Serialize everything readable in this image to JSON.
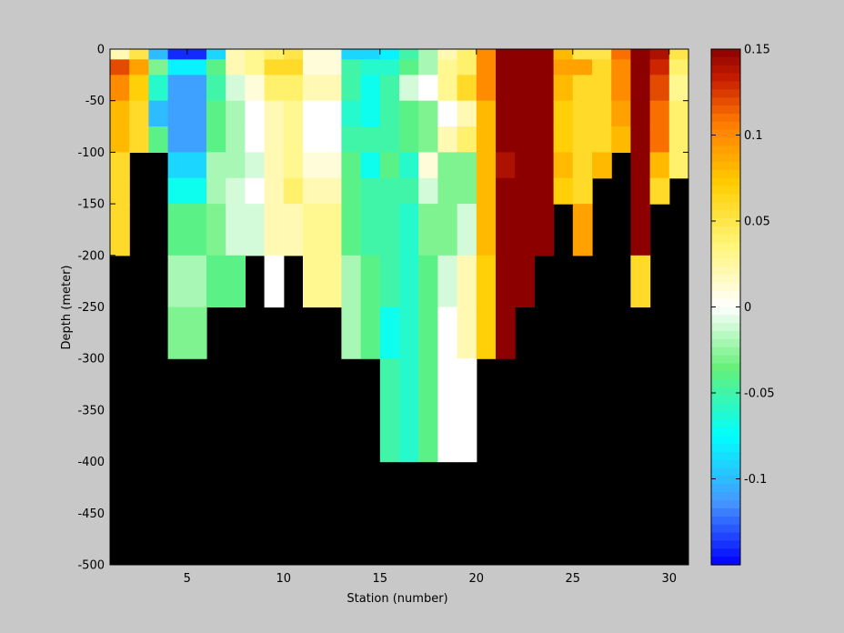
{
  "chart_data": {
    "type": "heatmap",
    "xlabel": "Station (number)",
    "ylabel": "Depth (meter)",
    "xlim": [
      1,
      31
    ],
    "ylim": [
      -500,
      0
    ],
    "x_ticks": [
      5,
      10,
      15,
      20,
      25,
      30
    ],
    "y_ticks": [
      0,
      -50,
      -100,
      -150,
      -200,
      -250,
      -300,
      -350,
      -400,
      -450,
      -500
    ],
    "colorbar": {
      "range": [
        -0.15,
        0.15
      ],
      "ticks": [
        0.15,
        0.1,
        0.05,
        0,
        -0.05,
        -0.1
      ],
      "tick_labels": [
        "0.15",
        "0.1",
        "0.05",
        "0",
        "-0.05",
        "-0.1"
      ],
      "colormap": "jet-white-center"
    },
    "no_data_color": "#000000",
    "background_color": "#c8c8c8",
    "depth_bins": [
      0,
      -10,
      -25,
      -50,
      -75,
      -100,
      -125,
      -150,
      -200,
      -250,
      -300,
      -400
    ],
    "station_columns": [
      [
        0.02,
        0.12,
        0.1,
        0.08,
        0.08,
        0.06,
        0.06,
        0.06,
        null,
        null,
        null
      ],
      [
        0.05,
        0.09,
        0.07,
        0.06,
        0.06,
        null,
        null,
        null,
        null,
        null,
        null
      ],
      [
        -0.1,
        -0.03,
        -0.06,
        -0.1,
        -0.04,
        null,
        null,
        null,
        null,
        null,
        null
      ],
      [
        -0.14,
        -0.08,
        -0.11,
        -0.11,
        -0.11,
        -0.09,
        -0.07,
        -0.04,
        -0.02,
        -0.03,
        null
      ],
      [
        -0.14,
        -0.08,
        -0.11,
        -0.11,
        -0.11,
        -0.09,
        -0.07,
        -0.04,
        -0.02,
        -0.03,
        null
      ],
      [
        -0.09,
        -0.04,
        -0.05,
        -0.04,
        -0.04,
        -0.02,
        -0.02,
        -0.03,
        -0.04,
        null,
        null
      ],
      [
        0.02,
        0.02,
        -0.01,
        -0.02,
        -0.02,
        -0.02,
        -0.01,
        -0.01,
        -0.04,
        null,
        null
      ],
      [
        0.03,
        0.03,
        0.01,
        0.0,
        0.0,
        -0.01,
        0.0,
        -0.01,
        null,
        null,
        null
      ],
      [
        0.04,
        0.06,
        0.04,
        0.02,
        0.02,
        0.02,
        0.02,
        0.02,
        0.0,
        null,
        null
      ],
      [
        0.05,
        0.06,
        0.04,
        0.03,
        0.03,
        0.03,
        0.04,
        0.02,
        null,
        null,
        null
      ],
      [
        0.01,
        0.01,
        0.02,
        0.0,
        0.0,
        0.01,
        0.02,
        0.03,
        0.03,
        null,
        null
      ],
      [
        0.01,
        0.01,
        0.02,
        0.0,
        0.0,
        0.01,
        0.02,
        0.03,
        0.03,
        null,
        null
      ],
      [
        -0.09,
        -0.05,
        -0.05,
        -0.06,
        -0.05,
        -0.04,
        -0.04,
        -0.04,
        -0.02,
        -0.02,
        null
      ],
      [
        -0.09,
        -0.06,
        -0.07,
        -0.07,
        -0.05,
        -0.07,
        -0.05,
        -0.05,
        -0.04,
        -0.04,
        null
      ],
      [
        -0.08,
        -0.06,
        -0.05,
        -0.05,
        -0.05,
        -0.04,
        -0.05,
        -0.05,
        -0.05,
        -0.07,
        -0.05
      ],
      [
        -0.05,
        -0.04,
        -0.01,
        -0.04,
        -0.04,
        -0.06,
        -0.05,
        -0.06,
        -0.06,
        -0.06,
        -0.06
      ],
      [
        -0.02,
        -0.02,
        0.0,
        -0.03,
        -0.03,
        0.01,
        -0.01,
        -0.03,
        -0.04,
        -0.04,
        -0.04
      ],
      [
        0.02,
        0.03,
        0.03,
        0.0,
        0.02,
        -0.03,
        -0.03,
        -0.03,
        -0.01,
        0.0,
        0.0
      ],
      [
        0.04,
        0.04,
        0.06,
        0.02,
        0.04,
        -0.03,
        -0.03,
        -0.01,
        0.02,
        0.02,
        0.0
      ],
      [
        0.1,
        0.1,
        0.1,
        0.08,
        0.08,
        0.08,
        0.08,
        0.08,
        0.07,
        0.07,
        null
      ],
      [
        0.15,
        0.15,
        0.15,
        0.15,
        0.15,
        0.14,
        0.15,
        0.15,
        0.15,
        0.15,
        null
      ],
      [
        0.15,
        0.15,
        0.15,
        0.15,
        0.15,
        0.15,
        0.15,
        0.15,
        0.15,
        null,
        null
      ],
      [
        0.15,
        0.15,
        0.15,
        0.15,
        0.15,
        0.15,
        0.15,
        0.15,
        null,
        null,
        null
      ],
      [
        0.08,
        0.09,
        0.08,
        0.07,
        0.07,
        0.08,
        0.07,
        null,
        null,
        null,
        null
      ],
      [
        0.05,
        0.09,
        0.06,
        0.06,
        0.06,
        0.06,
        0.06,
        0.09,
        null,
        null,
        null
      ],
      [
        0.05,
        0.06,
        0.06,
        0.06,
        0.06,
        0.08,
        null,
        null,
        null,
        null,
        null
      ],
      [
        0.11,
        0.1,
        0.1,
        0.09,
        0.08,
        null,
        null,
        null,
        null,
        null,
        null
      ],
      [
        0.15,
        0.15,
        0.15,
        0.15,
        0.15,
        0.15,
        0.15,
        0.15,
        0.06,
        null,
        null
      ],
      [
        0.14,
        0.13,
        0.12,
        0.11,
        0.11,
        0.08,
        0.06,
        null,
        null,
        null,
        null
      ],
      [
        0.05,
        0.04,
        0.03,
        0.04,
        0.04,
        0.04,
        null,
        null,
        null,
        null,
        null
      ]
    ]
  }
}
